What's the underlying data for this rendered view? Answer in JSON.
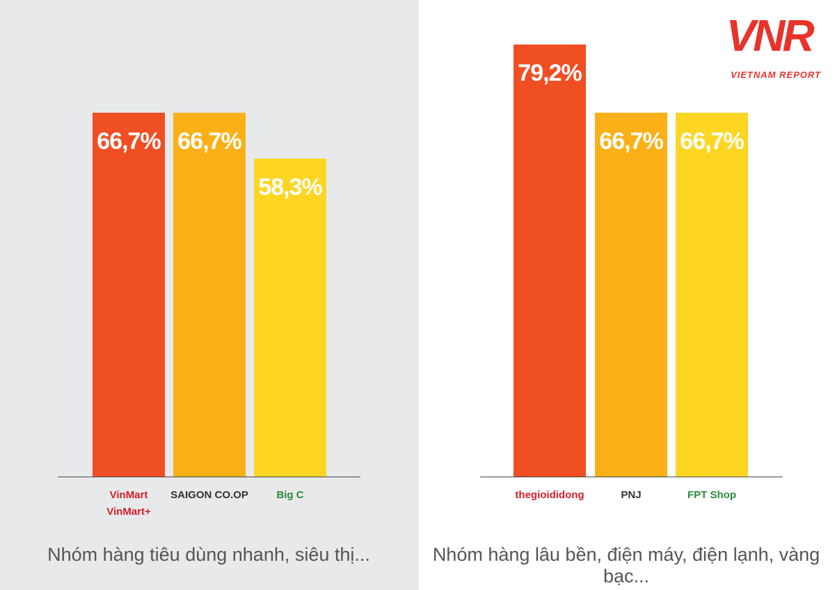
{
  "logo": {
    "mark": "VNR",
    "text": "VIETNAM REPORT"
  },
  "chart_data": [
    {
      "type": "bar",
      "title": "Nhóm hàng tiêu dùng nhanh, siêu thị...",
      "categories": [
        "VinMart\nVinMart+",
        "SAIGON CO.OP",
        "Big C"
      ],
      "values": [
        66.7,
        66.7,
        58.3
      ],
      "value_labels": [
        "66,7%",
        "66,7%",
        "58,3%"
      ],
      "colors": [
        "#f04e23",
        "#fbb017",
        "#fed523"
      ]
    },
    {
      "type": "bar",
      "title": "Nhóm hàng lâu bền, điện máy, điện lạnh, vàng bạc...",
      "categories": [
        "thegioididong",
        "PNJ",
        "FPT Shop"
      ],
      "values": [
        79.2,
        66.7,
        66.7
      ],
      "value_labels": [
        "79,2%",
        "66,7%",
        "66,7%"
      ],
      "colors": [
        "#f04e23",
        "#fbb017",
        "#fed523"
      ]
    }
  ]
}
